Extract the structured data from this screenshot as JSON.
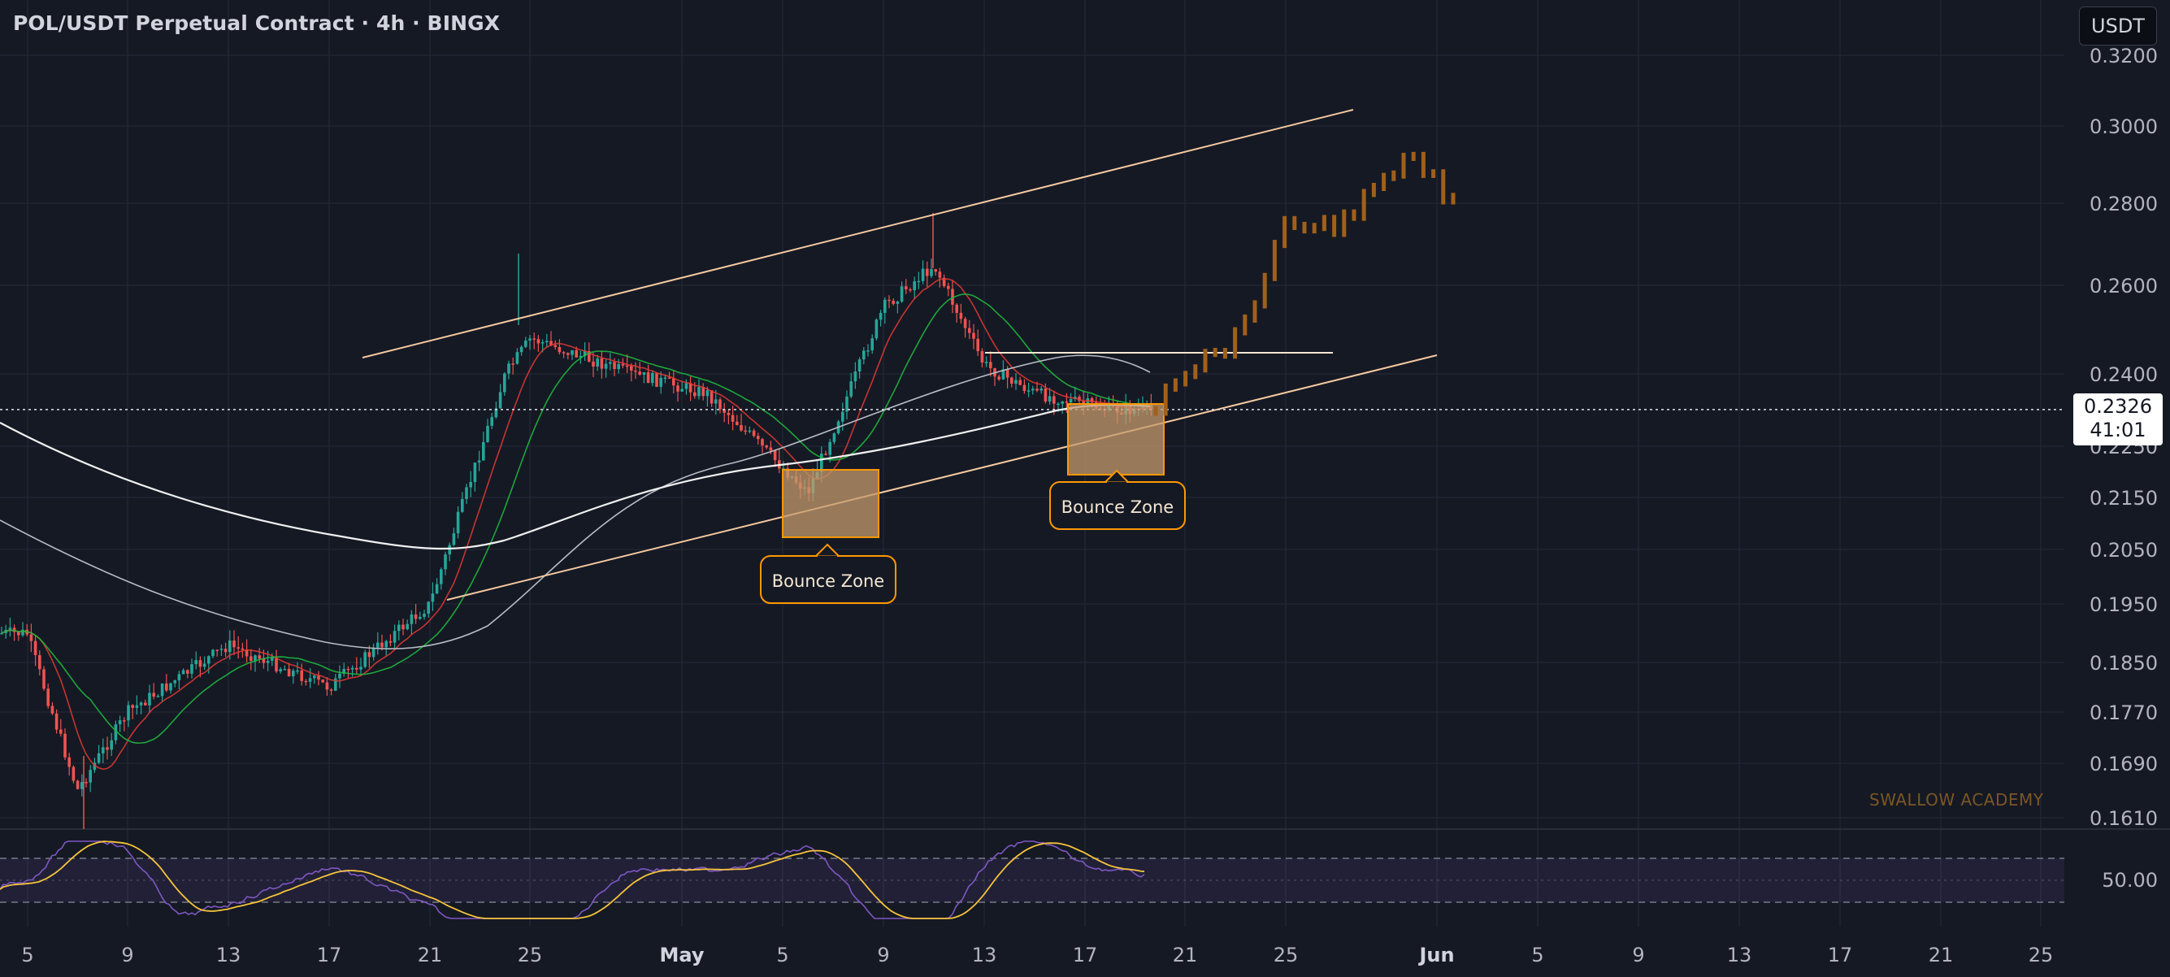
{
  "chart_title": "POL/USDT Perpetual Contract · 4h · BINGX",
  "currency_button": "USDT",
  "last_price": "0.2326",
  "countdown": "41:01",
  "watermark": "SWALLOW ACADEMY",
  "annotations": [
    "Bounce Zone",
    "Bounce Zone"
  ],
  "colors": {
    "background": "#151924",
    "up_candle": "#26a69a",
    "down_candle": "#ef5350",
    "projection": "#a1601a",
    "channel": "#f5c9a0",
    "zone_fill": "#c49a6c",
    "zone_border": "#ff9800",
    "rsi": "#7e57c2",
    "rsi_ma": "#f6c33b"
  },
  "chart_data": {
    "type": "candlestick",
    "y_ticks": [
      "0.3200",
      "0.3000",
      "0.2800",
      "0.2600",
      "0.2400",
      "0.2250",
      "0.2150",
      "0.2050",
      "0.1950",
      "0.1850",
      "0.1770",
      "0.1690",
      "0.1610"
    ],
    "x_ticks": [
      "5",
      "9",
      "13",
      "17",
      "21",
      "25",
      "May",
      "5",
      "9",
      "13",
      "17",
      "21",
      "25",
      "Jun",
      "5",
      "9",
      "13",
      "17",
      "21",
      "25"
    ],
    "rsi_tick": "50.00",
    "ohlc_approx": [
      {
        "date": "Apr 5",
        "close": 0.19
      },
      {
        "date": "Apr 7",
        "close": 0.165
      },
      {
        "date": "Apr 9",
        "close": 0.177
      },
      {
        "date": "Apr 13",
        "close": 0.188
      },
      {
        "date": "Apr 17",
        "close": 0.181
      },
      {
        "date": "Apr 21",
        "close": 0.195
      },
      {
        "date": "Apr 24",
        "close": 0.24
      },
      {
        "date": "Apr 25",
        "close": 0.248
      },
      {
        "date": "Apr 29",
        "close": 0.24
      },
      {
        "date": "May 2",
        "close": 0.236
      },
      {
        "date": "May 6",
        "close": 0.216
      },
      {
        "date": "May 9",
        "close": 0.255
      },
      {
        "date": "May 11",
        "close": 0.265
      },
      {
        "date": "May 13",
        "close": 0.242
      },
      {
        "date": "May 15",
        "close": 0.236
      },
      {
        "date": "May 18",
        "close": 0.2326
      }
    ],
    "projection_approx": [
      {
        "date": "May 20",
        "close": 0.238
      },
      {
        "date": "May 23",
        "close": 0.248
      },
      {
        "date": "May 25",
        "close": 0.275
      },
      {
        "date": "May 27",
        "close": 0.275
      },
      {
        "date": "May 30",
        "close": 0.292
      },
      {
        "date": "Jun 1",
        "close": 0.277
      }
    ]
  }
}
